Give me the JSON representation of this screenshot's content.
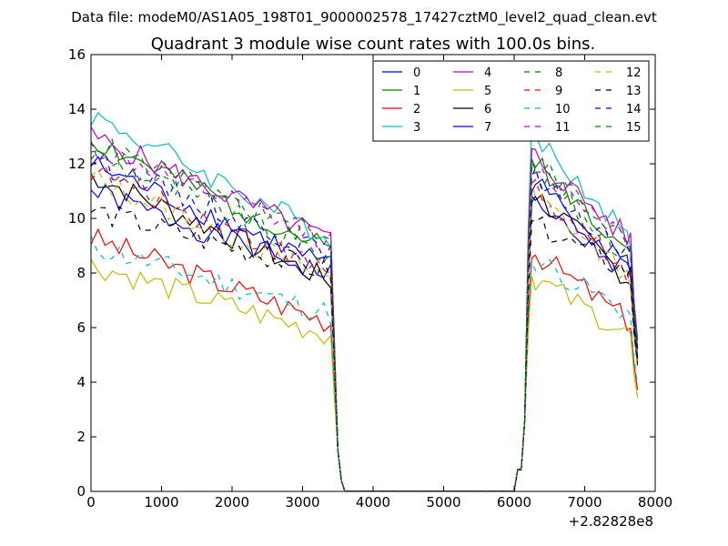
{
  "figure": {
    "suptitle": "Data file: modeM0/AS1A05_198T01_9000002578_17427cztM0_level2_quad_clean.evt"
  },
  "chart_data": {
    "type": "line",
    "title": "Quadrant 3 module wise count rates with 100.0s bins.",
    "xlabel": "",
    "ylabel": "",
    "xlim": [
      0,
      8000
    ],
    "ylim": [
      0,
      16
    ],
    "x_offset_label": "+2.82828e8",
    "xticks": [
      0,
      1000,
      2000,
      3000,
      4000,
      5000,
      6000,
      7000,
      8000
    ],
    "yticks": [
      0,
      2,
      4,
      6,
      8,
      10,
      12,
      14,
      16
    ],
    "legend_position": "top-right",
    "legend_columns": 4,
    "x": [
      0,
      100,
      200,
      300,
      400,
      500,
      600,
      700,
      800,
      900,
      1000,
      1100,
      1200,
      1300,
      1400,
      1500,
      1600,
      1700,
      1800,
      1900,
      2000,
      2100,
      2200,
      2300,
      2400,
      2500,
      2600,
      2700,
      2800,
      2900,
      3000,
      3100,
      3200,
      3300,
      3400,
      3450,
      3500,
      3550,
      3600,
      3700,
      3800,
      3900,
      4000,
      4100,
      4200,
      4300,
      4400,
      4500,
      4600,
      4700,
      4800,
      4900,
      5000,
      5100,
      5200,
      5300,
      5400,
      5500,
      5600,
      5700,
      5800,
      5900,
      6000,
      6050,
      6100,
      6150,
      6200,
      6250,
      6300,
      6400,
      6500,
      6600,
      6700,
      6800,
      6900,
      7000,
      7100,
      7200,
      7300,
      7400,
      7500,
      7600,
      7650,
      7700,
      7750
    ],
    "series": [
      {
        "name": "0",
        "color": "#0000ff",
        "dash": "solid",
        "base": 11.0,
        "last": 7.9,
        "seed": 1
      },
      {
        "name": "1",
        "color": "#008000",
        "dash": "solid",
        "base": 12.9,
        "last": 8.8,
        "seed": 2
      },
      {
        "name": "2",
        "color": "#ff0000",
        "dash": "solid",
        "base": 9.3,
        "last": 6.2,
        "seed": 3
      },
      {
        "name": "3",
        "color": "#00bfbf",
        "dash": "solid",
        "base": 13.8,
        "last": 9.3,
        "seed": 4
      },
      {
        "name": "4",
        "color": "#bf00bf",
        "dash": "solid",
        "base": 13.0,
        "last": 9.2,
        "seed": 5
      },
      {
        "name": "5",
        "color": "#bfbf00",
        "dash": "solid",
        "base": 8.3,
        "last": 5.7,
        "seed": 6
      },
      {
        "name": "6",
        "color": "#000000",
        "dash": "solid",
        "base": 11.6,
        "last": 7.7,
        "seed": 7
      },
      {
        "name": "7",
        "color": "#0000ff",
        "dash": "solid",
        "base": 12.0,
        "last": 8.2,
        "seed": 8
      },
      {
        "name": "8",
        "color": "#008000",
        "dash": "dashed",
        "base": 12.4,
        "last": 8.6,
        "seed": 9
      },
      {
        "name": "9",
        "color": "#ff0000",
        "dash": "dashed",
        "base": 11.8,
        "last": 8.0,
        "seed": 10
      },
      {
        "name": "10",
        "color": "#00bfbf",
        "dash": "dashed",
        "base": 9.0,
        "last": 6.5,
        "seed": 11
      },
      {
        "name": "11",
        "color": "#bf00bf",
        "dash": "dashed",
        "base": 12.6,
        "last": 9.2,
        "seed": 12
      },
      {
        "name": "12",
        "color": "#bfbf00",
        "dash": "dashed",
        "base": 11.5,
        "last": 7.8,
        "seed": 13
      },
      {
        "name": "13",
        "color": "#000000",
        "dash": "dashed",
        "base": 10.3,
        "last": 8.0,
        "seed": 14
      },
      {
        "name": "14",
        "color": "#0000ff",
        "dash": "dashed",
        "base": 12.2,
        "last": 8.6,
        "seed": 15
      },
      {
        "name": "15",
        "color": "#008000",
        "dash": "dashed",
        "base": 12.8,
        "last": 9.1,
        "seed": 16
      }
    ]
  }
}
